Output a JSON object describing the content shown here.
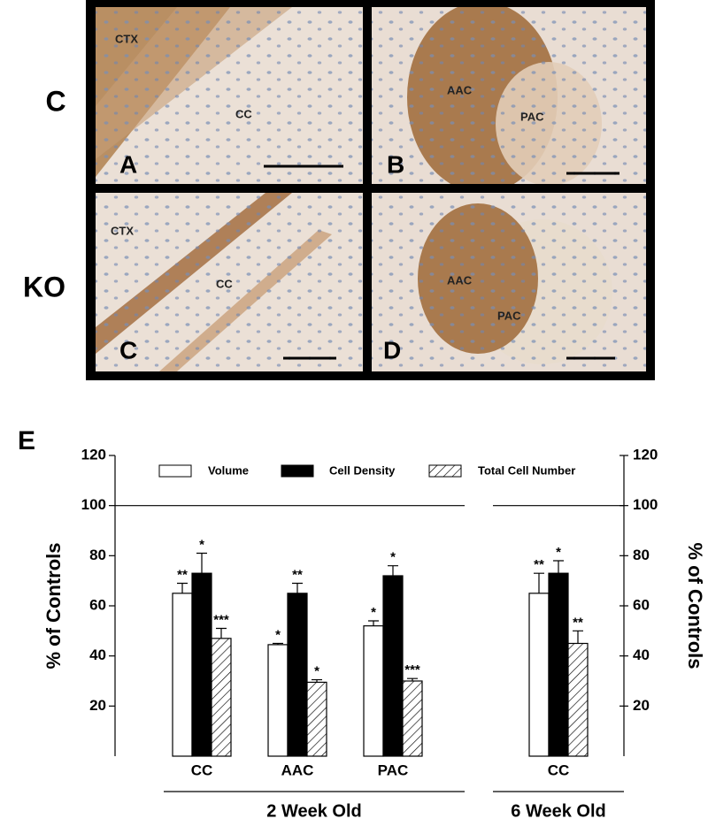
{
  "micrographs": {
    "row_labels": [
      "C",
      "KO"
    ],
    "panels": [
      {
        "letter": "A",
        "labels": [
          "CTX",
          "CC"
        ]
      },
      {
        "letter": "B",
        "labels": [
          "AAC",
          "PAC"
        ]
      },
      {
        "letter": "C",
        "labels": [
          "CTX",
          "CC"
        ]
      },
      {
        "letter": "D",
        "labels": [
          "AAC",
          "PAC"
        ]
      }
    ]
  },
  "chart_data": {
    "type": "bar",
    "label": "E",
    "ylabel": "% of Controls",
    "y2label": "% of Controls",
    "ylim": [
      0,
      120
    ],
    "yticks": [
      20,
      40,
      60,
      80,
      100,
      120
    ],
    "y2lim": [
      0,
      120
    ],
    "y2ticks": [
      20,
      40,
      60,
      80,
      100,
      120
    ],
    "reference_line": 100,
    "groups": [
      {
        "label": "2 Week Old",
        "categories": [
          "CC",
          "AAC",
          "PAC"
        ]
      },
      {
        "label": "6 Week Old",
        "categories": [
          "CC"
        ]
      }
    ],
    "series": [
      {
        "name": "Volume",
        "color": "#ffffff",
        "hatch": false,
        "values": [
          65,
          44.5,
          52,
          65
        ],
        "errors": [
          4,
          0.5,
          2,
          8
        ],
        "annotations": [
          "**",
          "*",
          "*",
          "**"
        ]
      },
      {
        "name": "Cell Density",
        "color": "#000000",
        "hatch": false,
        "values": [
          73,
          65,
          72,
          73
        ],
        "errors": [
          8,
          4,
          4,
          5
        ],
        "annotations": [
          "*",
          "**",
          "*",
          "*"
        ]
      },
      {
        "name": "Total Cell Number",
        "color": "#ffffff",
        "hatch": true,
        "values": [
          47,
          29.5,
          30,
          45
        ],
        "errors": [
          4,
          1,
          1,
          5
        ],
        "annotations": [
          "***",
          "*",
          "***",
          "**"
        ]
      }
    ]
  }
}
